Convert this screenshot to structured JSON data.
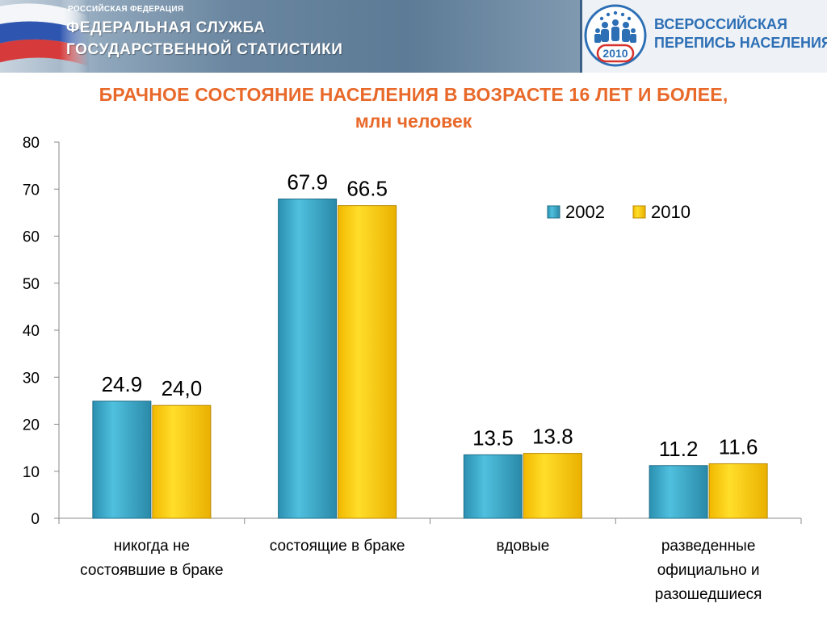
{
  "header": {
    "org_small": "РОССИЙСКАЯ ФЕДЕРАЦИЯ",
    "org_line1": "ФЕДЕРАЛЬНАЯ СЛУЖБА",
    "org_line2": "ГОСУДАРСТВЕННОЙ СТАТИСТИКИ",
    "census_line1": "ВСЕРОССИЙСКАЯ",
    "census_line2": "ПЕРЕПИСЬ НАСЕЛЕНИЯ",
    "census_year": "2010"
  },
  "colors": {
    "title": "#e8692a",
    "series_2002": "#3aa8c8",
    "series_2010": "#f5c800",
    "census_blue": "#2d6fb5",
    "census_red": "#d6322b"
  },
  "chart_data": {
    "type": "bar",
    "title": "БРАЧНОЕ СОСТОЯНИЕ НАСЕЛЕНИЯ В ВОЗРАСТЕ 16 ЛЕТ И БОЛЕЕ,",
    "subtitle": "млн человек",
    "categories": [
      [
        "никогда не",
        "состоявшие в браке"
      ],
      [
        "состоящие в браке"
      ],
      [
        "вдовые"
      ],
      [
        "разведенные",
        "официально и",
        "разошедшиеся"
      ]
    ],
    "series": [
      {
        "name": "2002",
        "values": [
          24.9,
          67.9,
          13.5,
          11.2
        ],
        "labels": [
          "24.9",
          "67.9",
          "13.5",
          "11.2"
        ]
      },
      {
        "name": "2010",
        "values": [
          24.0,
          66.5,
          13.8,
          11.6
        ],
        "labels": [
          "24,0",
          "66.5",
          "13.8",
          "11.6"
        ]
      }
    ],
    "yticks": [
      "0",
      "10",
      "20",
      "30",
      "40",
      "50",
      "60",
      "70",
      "80"
    ],
    "ylim": [
      0,
      80
    ],
    "grid": false,
    "legend_position": "top-right"
  }
}
